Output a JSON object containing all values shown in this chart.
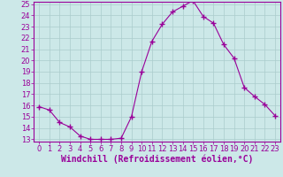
{
  "x": [
    0,
    1,
    2,
    3,
    4,
    5,
    6,
    7,
    8,
    9,
    10,
    11,
    12,
    13,
    14,
    15,
    16,
    17,
    18,
    19,
    20,
    21,
    22,
    23
  ],
  "y": [
    15.9,
    15.6,
    14.5,
    14.1,
    13.3,
    13.0,
    13.0,
    13.0,
    13.1,
    15.0,
    19.0,
    21.7,
    23.2,
    24.3,
    24.8,
    25.3,
    23.9,
    23.3,
    21.4,
    20.2,
    17.6,
    16.8,
    16.1,
    15.1
  ],
  "line_color": "#990099",
  "marker": "+",
  "marker_size": 4,
  "bg_color": "#cce8e8",
  "grid_color": "#aacccc",
  "xlabel": "Windchill (Refroidissement éolien,°C)",
  "xlabel_color": "#990099",
  "xlabel_fontsize": 7,
  "ylim": [
    13,
    25
  ],
  "xlim": [
    -0.5,
    23.5
  ],
  "yticks": [
    13,
    14,
    15,
    16,
    17,
    18,
    19,
    20,
    21,
    22,
    23,
    24,
    25
  ],
  "xticks": [
    0,
    1,
    2,
    3,
    4,
    5,
    6,
    7,
    8,
    9,
    10,
    11,
    12,
    13,
    14,
    15,
    16,
    17,
    18,
    19,
    20,
    21,
    22,
    23
  ],
  "tick_fontsize": 6,
  "tick_color": "#990099",
  "spine_color": "#990099"
}
